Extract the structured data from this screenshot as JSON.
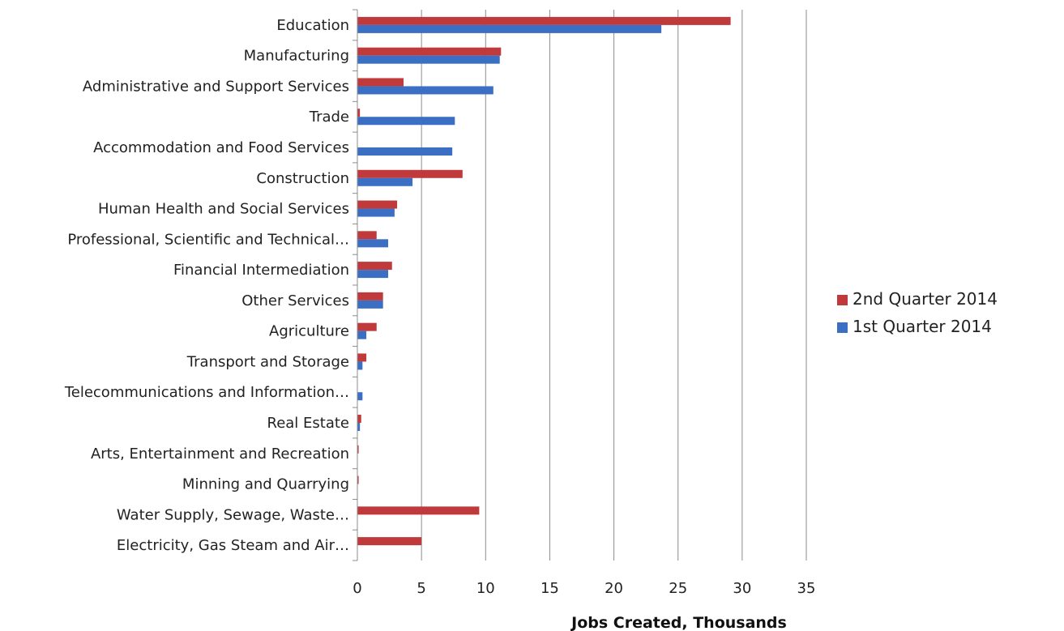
{
  "chart_data": {
    "type": "bar",
    "orientation": "horizontal",
    "categories": [
      "Education",
      "Manufacturing",
      "Administrative and Support Services",
      "Trade",
      "Accommodation and Food Services",
      "Construction",
      "Human Health and Social Services",
      "Professional, Scientific and Technical…",
      "Financial Intermediation",
      "Other Services",
      "Agriculture",
      "Transport and Storage",
      "Telecommunications and Information…",
      "Real Estate",
      "Arts, Entertainment and Recreation",
      "Minning and Quarrying",
      "Water Supply, Sewage, Waste…",
      "Electricity, Gas Steam and Air…"
    ],
    "series": [
      {
        "name": "2nd Quarter 2014",
        "color": "#c0393b",
        "values": [
          29.1,
          11.2,
          3.6,
          0.2,
          0,
          8.2,
          3.1,
          1.5,
          2.7,
          2.0,
          1.5,
          0.7,
          0,
          0.3,
          0.1,
          0.1,
          9.5,
          5.0
        ]
      },
      {
        "name": "1st Quarter 2014",
        "color": "#3a6fc4",
        "values": [
          23.7,
          11.1,
          10.6,
          7.6,
          7.4,
          4.3,
          2.9,
          2.4,
          2.4,
          2.0,
          0.7,
          0.4,
          0.4,
          0.2,
          0,
          0,
          0,
          0
        ]
      }
    ],
    "xlim": [
      0,
      35
    ],
    "xticks": [
      0,
      5,
      10,
      15,
      20,
      25,
      30,
      35
    ],
    "xtick_labels": [
      "0",
      "5",
      "10",
      "15",
      "20",
      "25",
      "30",
      "35"
    ],
    "xlabel": "Jobs Created, Thousands",
    "ylabel": "",
    "title": "",
    "grid": true,
    "legend_position": "right"
  }
}
